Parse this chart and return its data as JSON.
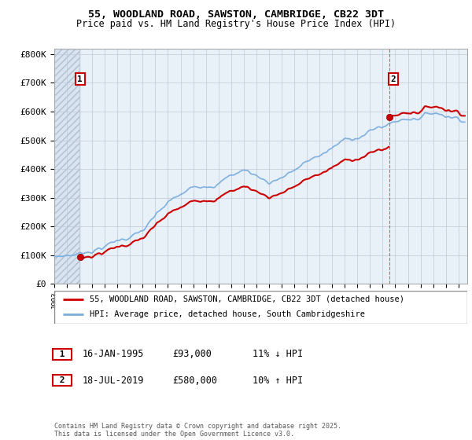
{
  "title1": "55, WOODLAND ROAD, SAWSTON, CAMBRIDGE, CB22 3DT",
  "title2": "Price paid vs. HM Land Registry's House Price Index (HPI)",
  "ylabel_ticks": [
    "£0",
    "£100K",
    "£200K",
    "£300K",
    "£400K",
    "£500K",
    "£600K",
    "£700K",
    "£800K"
  ],
  "ytick_vals": [
    0,
    100000,
    200000,
    300000,
    400000,
    500000,
    600000,
    700000,
    800000
  ],
  "ylim": [
    0,
    820000
  ],
  "xlim_start": 1993.0,
  "xlim_end": 2025.7,
  "sale1_date": 1995.04,
  "sale1_price": 93000,
  "sale2_date": 2019.54,
  "sale2_price": 580000,
  "legend_line1": "55, WOODLAND ROAD, SAWSTON, CAMBRIDGE, CB22 3DT (detached house)",
  "legend_line2": "HPI: Average price, detached house, South Cambridgeshire",
  "table_row1": [
    "1",
    "16-JAN-1995",
    "£93,000",
    "11% ↓ HPI"
  ],
  "table_row2": [
    "2",
    "18-JUL-2019",
    "£580,000",
    "10% ↑ HPI"
  ],
  "copyright_text": "Contains HM Land Registry data © Crown copyright and database right 2025.\nThis data is licensed under the Open Government Licence v3.0.",
  "price_paid_color": "#cc0000",
  "hpi_color": "#7aaddd",
  "bg_color": "#e8f0f8",
  "grid_color": "#c0c8d8",
  "hatch_bg": "#dde8f2"
}
